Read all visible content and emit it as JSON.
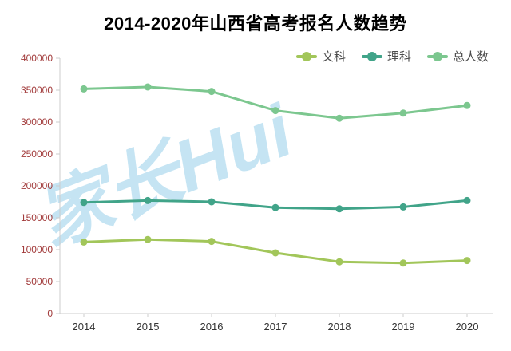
{
  "title": "2014-2020年山西省高考报名人数趋势",
  "watermark": "家长Hui",
  "colors": {
    "background": "#ffffff",
    "axis_line": "#cccccc",
    "y_tick_label": "#a23b3b",
    "x_tick_label": "#333333",
    "legend_label": "#4d4d4d",
    "watermark": "#bfe2f2",
    "title": "#000000"
  },
  "chart_data": {
    "type": "line",
    "title": "2014-2020年山西省高考报名人数趋势",
    "categories": [
      "2014",
      "2015",
      "2016",
      "2017",
      "2018",
      "2019",
      "2020"
    ],
    "series": [
      {
        "name": "文科",
        "color": "#a2c65a",
        "values": [
          112000,
          116000,
          113000,
          95000,
          81000,
          79000,
          83000
        ]
      },
      {
        "name": "理科",
        "color": "#41a489",
        "values": [
          174000,
          177000,
          175000,
          166000,
          164000,
          167000,
          177000
        ]
      },
      {
        "name": "总人数",
        "color": "#7cc78f",
        "values": [
          352000,
          355000,
          348000,
          318000,
          306000,
          314000,
          326000
        ]
      }
    ],
    "xlabel": "",
    "ylabel": "",
    "ylim": [
      0,
      400000
    ],
    "ytick_step": 50000,
    "grid": false,
    "legend_position": "top-right"
  }
}
